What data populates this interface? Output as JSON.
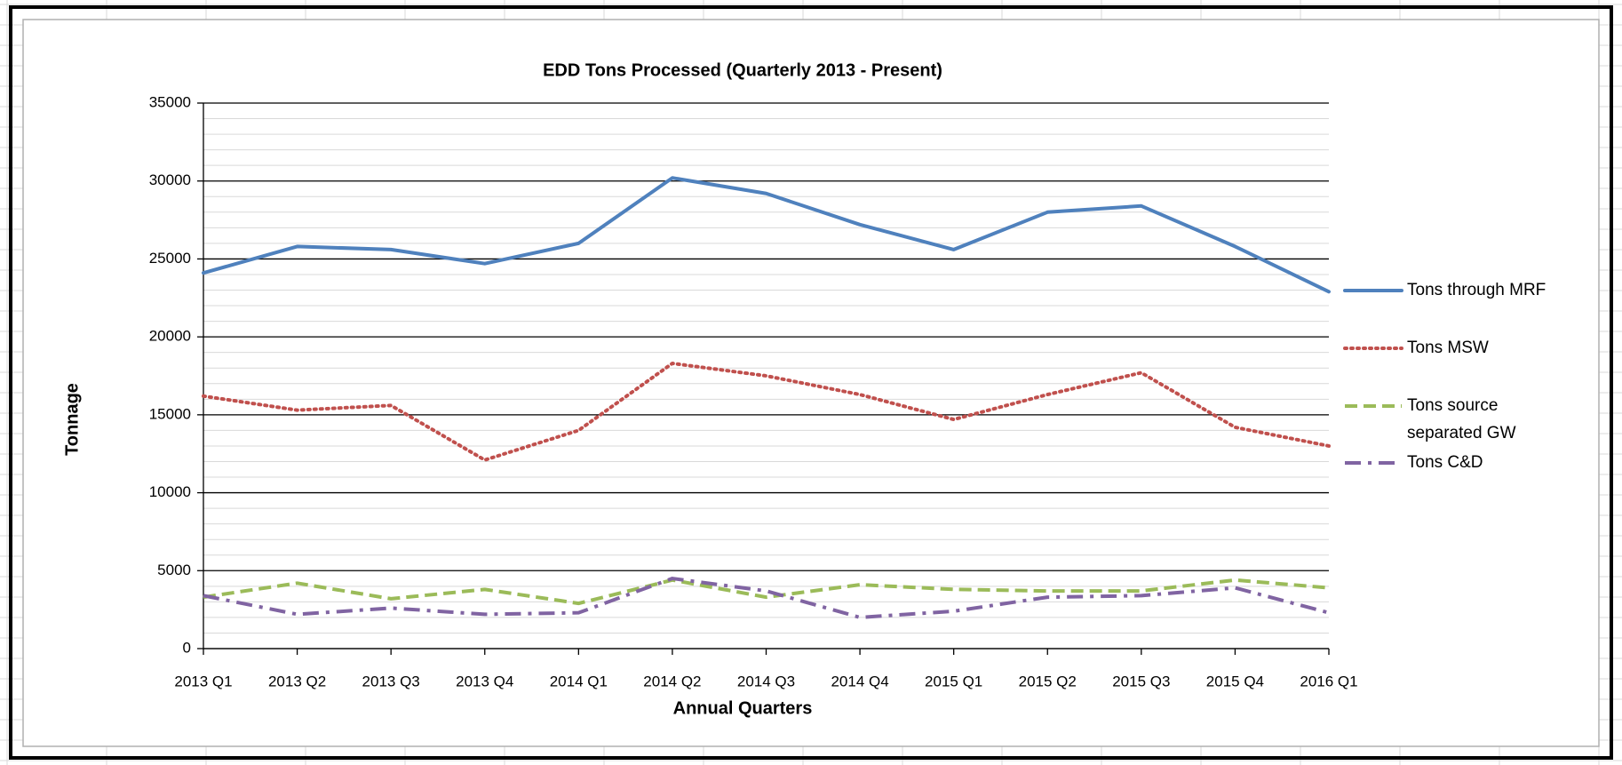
{
  "chart_data": {
    "type": "line",
    "title": "EDD Tons Processed (Quarterly 2013 - Present)",
    "x_label": "Annual Quarters",
    "y_label": "Tonnage",
    "categories": [
      "2013 Q1",
      "2013 Q2",
      "2013 Q3",
      "2013 Q4",
      "2014 Q1",
      "2014 Q2",
      "2014 Q3",
      "2014 Q4",
      "2015 Q1",
      "2015 Q2",
      "2015 Q3",
      "2015 Q4",
      "2016 Q1"
    ],
    "series": [
      {
        "name": "Tons through MRF",
        "color": "#4f81bd",
        "style": "solid",
        "values": [
          24100,
          25800,
          25600,
          24700,
          26000,
          30200,
          29200,
          27200,
          25600,
          28000,
          28400,
          25800,
          22900
        ]
      },
      {
        "name": "Tons MSW",
        "color": "#c0504d",
        "style": "dotted",
        "values": [
          16200,
          15300,
          15600,
          12100,
          14000,
          18300,
          17500,
          16300,
          14700,
          16300,
          17700,
          14200,
          13000
        ]
      },
      {
        "name": "Tons source separated GW",
        "color": "#9bbb59",
        "style": "dashed",
        "values": [
          3300,
          4200,
          3200,
          3800,
          2900,
          4400,
          3300,
          4100,
          3800,
          3700,
          3700,
          4400,
          3900
        ]
      },
      {
        "name": "Tons C&D",
        "color": "#8064a2",
        "style": "dash-dot",
        "values": [
          3400,
          2200,
          2600,
          2200,
          2300,
          4500,
          3700,
          2000,
          2400,
          3300,
          3400,
          3900,
          2300
        ]
      }
    ],
    "ylim": [
      0,
      35000
    ],
    "yticks": [
      0,
      5000,
      10000,
      15000,
      20000,
      25000,
      30000,
      35000
    ],
    "grid": true,
    "minor_grid": true,
    "legend": "right"
  }
}
